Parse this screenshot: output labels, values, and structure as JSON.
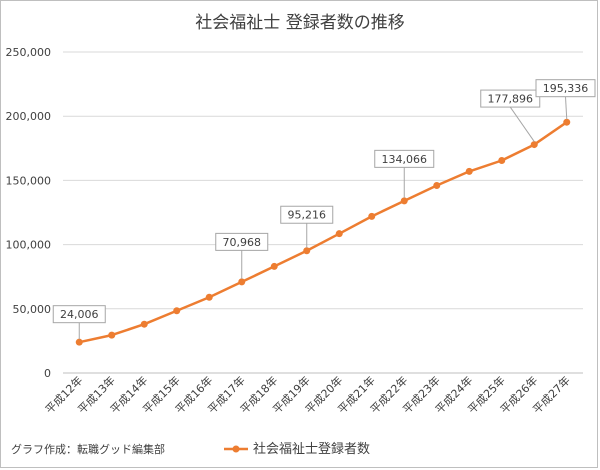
{
  "credit": "グラフ作成：転職グッド編集部",
  "chart_data": {
    "type": "line",
    "title": "社会福祉士 登録者数の推移",
    "xlabel": "",
    "ylabel": "",
    "categories": [
      "平成12年",
      "平成13年",
      "平成14年",
      "平成15年",
      "平成16年",
      "平成17年",
      "平成18年",
      "平成19年",
      "平成20年",
      "平成21年",
      "平成22年",
      "平成23年",
      "平成24年",
      "平成25年",
      "平成26年",
      "平成27年"
    ],
    "ylim": [
      0,
      250000
    ],
    "yticks": [
      0,
      50000,
      100000,
      150000,
      200000,
      250000
    ],
    "ytick_labels": [
      "0",
      "50,000",
      "100,000",
      "150,000",
      "200,000",
      "250,000"
    ],
    "grid": true,
    "legend_position": "bottom",
    "series": [
      {
        "name": "社会福祉士登録者数",
        "color": "#ed7d31",
        "values": [
          24006,
          29500,
          38000,
          48500,
          59000,
          70968,
          83000,
          95216,
          108500,
          122000,
          134066,
          146000,
          157000,
          165500,
          177896,
          195336
        ]
      }
    ],
    "annotations": [
      {
        "index": 0,
        "label": "24,006"
      },
      {
        "index": 5,
        "label": "70,968"
      },
      {
        "index": 7,
        "label": "95,216"
      },
      {
        "index": 10,
        "label": "134,066"
      },
      {
        "index": 14,
        "label": "177,896"
      },
      {
        "index": 15,
        "label": "195,336"
      }
    ]
  }
}
